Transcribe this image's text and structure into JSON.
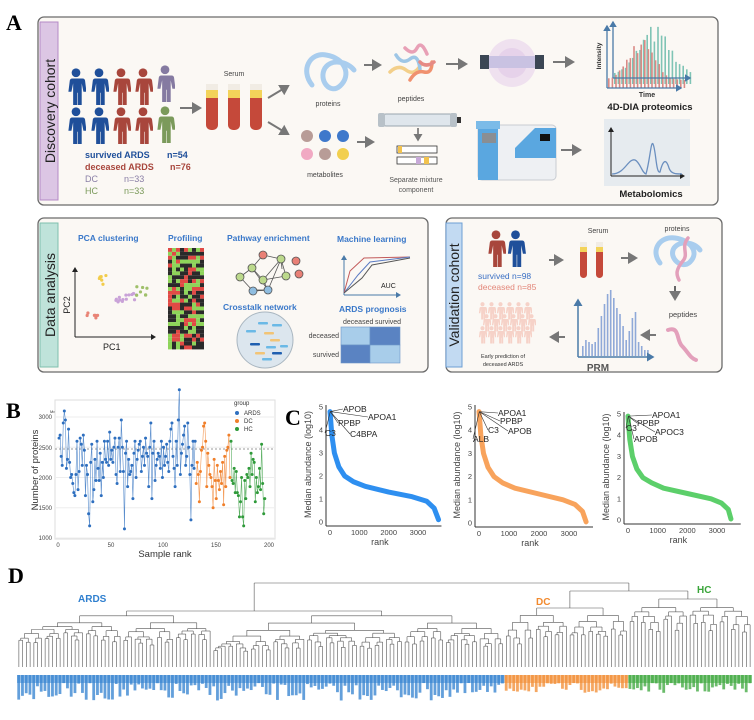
{
  "panels": {
    "A": "A",
    "B": "B",
    "C": "C",
    "D": "D"
  },
  "discovery": {
    "title": "Discovery cohort",
    "serum": "Serum",
    "proteins": "proteins",
    "peptides": "peptides",
    "metabolites": "metabolites",
    "separate": [
      "Separate mixture",
      "component"
    ],
    "dia_axis_y": "Intensity",
    "dia_axis_x": "Time",
    "dia_title": "4D-DIA proteomics",
    "metabolomics": "Metabolomics",
    "legend": [
      {
        "label": "survived ARDS",
        "n": "n=54",
        "color": "#1f4f9a"
      },
      {
        "label": "deceased ARDS",
        "n": "n=76",
        "color": "#a8463c"
      },
      {
        "label": "DC",
        "n": "n=33",
        "color": "#8a7fa6"
      },
      {
        "label": "HC",
        "n": "n=33",
        "color": "#7b9a5b"
      }
    ]
  },
  "analysis": {
    "title": "Data analysis",
    "pca": "PCA clustering",
    "pc1": "PC1",
    "pc2": "PC2",
    "profiling": "Profiling",
    "pathway": "Pathway enrichment",
    "crosstalk": "Crosstalk network",
    "ml": "Machine learning",
    "auc": "AUC",
    "prognosis": "ARDS prognosis",
    "cm_cols": [
      "deceased",
      "survived"
    ],
    "cm_rows": [
      "deceased",
      "survived"
    ]
  },
  "validation": {
    "title": "Validation cohort",
    "serum": "Serum",
    "proteins": "proteins",
    "peptides": "peptides",
    "survived": "survived n=98",
    "deceased": "deceased n=85",
    "prm": "PRM",
    "prediction": [
      "Early prediction of",
      "deceased ARDS"
    ]
  },
  "chart_data": [
    {
      "panel": "B",
      "type": "line",
      "title": "Median Number = 2471",
      "xlabel": "Sample rank",
      "ylabel": "Number of proteins",
      "xlim": [
        0,
        200
      ],
      "ylim": [
        1000,
        3500
      ],
      "xticks": [
        "0",
        "50",
        "100",
        "150",
        "200"
      ],
      "yticks": [
        "1000",
        "1500",
        "2000",
        "2500",
        "3000"
      ],
      "reference_line": 2471,
      "legend_title": "group",
      "legend_position": "top-right",
      "series": [
        {
          "name": "ARDS",
          "color": "#2e6fbf",
          "values": [
            2650,
            2700,
            2350,
            2200,
            2900,
            3100,
            2950,
            2150,
            2300,
            2800,
            2250,
            2000,
            2050,
            1900,
            1750,
            1700,
            2050,
            2600,
            1800,
            2100,
            2650,
            2550,
            2200,
            2700,
            2450,
            1700,
            2200,
            2050,
            1400,
            1200,
            2250,
            2550,
            1600,
            1800,
            2300,
            1950,
            2600,
            2150,
            1950,
            2400,
            1700,
            2250,
            2000,
            2600,
            2300,
            2250,
            2600,
            2200,
            2750,
            2300,
            2450,
            2250,
            2500,
            2650,
            2050,
            1900,
            2500,
            2650,
            2100,
            2950,
            2500,
            2100,
            1150,
            2400,
            2600,
            1850,
            2300,
            2050,
            2100,
            2200,
            1650,
            2400,
            2600,
            2000,
            2300,
            2450,
            2550,
            2600,
            2100,
            2350,
            2500,
            2200,
            2650,
            2400,
            2350,
            1850,
            2500,
            2900,
            1650,
            2400,
            2600,
            1950,
            2200,
            2300,
            2400,
            2350,
            2150,
            2600,
            2000,
            2500,
            2200,
            2350,
            2550,
            2250,
            2100,
            2600,
            2800,
            2900,
            2350,
            2150,
            1850,
            2600,
            2200,
            2950,
            3450,
            2050,
            2400,
            2550,
            2700,
            2850,
            2200,
            2350,
            2900,
            2500,
            2050,
            1300,
            2200,
            2600,
            2150,
            2600
          ]
        },
        {
          "name": "DC",
          "color": "#f07f2a",
          "values": [
            1900,
            2250,
            2050,
            1600,
            2100,
            2450,
            2500,
            2850,
            2900,
            2600,
            1850,
            2400,
            2200,
            2050,
            2000,
            1850,
            1500,
            2300,
            1950,
            1650,
            2200,
            1950,
            1800,
            2100,
            1900,
            2250,
            1550,
            2350,
            1850,
            2450,
            2500,
            2700,
            2000
          ]
        },
        {
          "name": "HC",
          "color": "#2f9a3a",
          "values": [
            2600,
            1950,
            1900,
            2150,
            1750,
            2100,
            1750,
            1700,
            1350,
            1600,
            2000,
            1350,
            1200,
            1950,
            1650,
            2050,
            2000,
            2150,
            1850,
            2400,
            2050,
            2300,
            2250,
            1600,
            2000,
            1750,
            1850,
            2150,
            1800,
            2550,
            1900,
            1400,
            1650
          ]
        }
      ]
    },
    {
      "panel": "C",
      "type": "line",
      "xlabel": "rank",
      "ylabel": "Median abundance (log10)",
      "xticks": [
        "0",
        "1000",
        "2000",
        "3000"
      ],
      "yticks": [
        "0",
        "1",
        "2",
        "3",
        "4",
        "5"
      ],
      "color": "#2e8ff0",
      "labels": [
        "APOB",
        "APOA1",
        "PPBP",
        "C4BPA",
        "C3"
      ],
      "points": [
        [
          0,
          4.8
        ],
        [
          20,
          4.5
        ],
        [
          60,
          3.8
        ],
        [
          150,
          3.0
        ],
        [
          300,
          2.4
        ],
        [
          500,
          2.0
        ],
        [
          800,
          1.75
        ],
        [
          1200,
          1.55
        ],
        [
          2000,
          1.3
        ],
        [
          2800,
          1.1
        ],
        [
          3300,
          0.9
        ],
        [
          3550,
          0.6
        ],
        [
          3700,
          0.1
        ]
      ]
    },
    {
      "panel": "C",
      "type": "line",
      "xlabel": "rank",
      "ylabel": "Median abundance (log10)",
      "xticks": [
        "0",
        "1000",
        "2000",
        "3000"
      ],
      "yticks": [
        "0",
        "1",
        "2",
        "3",
        "4",
        "5"
      ],
      "color": "#f8a35c",
      "labels": [
        "APOA1",
        "PPBP",
        "C3",
        "APOB",
        "ALB"
      ],
      "points": [
        [
          0,
          4.8
        ],
        [
          20,
          4.5
        ],
        [
          60,
          3.8
        ],
        [
          150,
          3.0
        ],
        [
          300,
          2.4
        ],
        [
          500,
          2.0
        ],
        [
          800,
          1.72
        ],
        [
          1200,
          1.5
        ],
        [
          2000,
          1.25
        ],
        [
          2800,
          1.0
        ],
        [
          3200,
          0.8
        ],
        [
          3450,
          0.5
        ],
        [
          3570,
          0.05
        ]
      ]
    },
    {
      "panel": "C",
      "type": "line",
      "xlabel": "rank",
      "ylabel": "Median abundance (log10)",
      "xticks": [
        "0",
        "1000",
        "2000",
        "3000"
      ],
      "yticks": [
        "0",
        "1",
        "2",
        "3",
        "4",
        "5"
      ],
      "color": "#5ccf6a",
      "labels": [
        "APOA1",
        "PPBP",
        "APOC3",
        "C3",
        "APOB"
      ],
      "points": [
        [
          0,
          4.9
        ],
        [
          20,
          4.5
        ],
        [
          60,
          3.8
        ],
        [
          150,
          3.0
        ],
        [
          300,
          2.4
        ],
        [
          500,
          2.0
        ],
        [
          800,
          1.75
        ],
        [
          1200,
          1.5
        ],
        [
          2000,
          1.25
        ],
        [
          2800,
          1.0
        ],
        [
          3150,
          0.8
        ],
        [
          3380,
          0.5
        ],
        [
          3470,
          0.05
        ]
      ]
    },
    {
      "panel": "D",
      "type": "dendrogram",
      "clusters": [
        {
          "name": "ARDS",
          "color": "#2f7fcf"
        },
        {
          "name": "DC",
          "color": "#f28a2e"
        },
        {
          "name": "HC",
          "color": "#3aa53a"
        }
      ]
    }
  ]
}
